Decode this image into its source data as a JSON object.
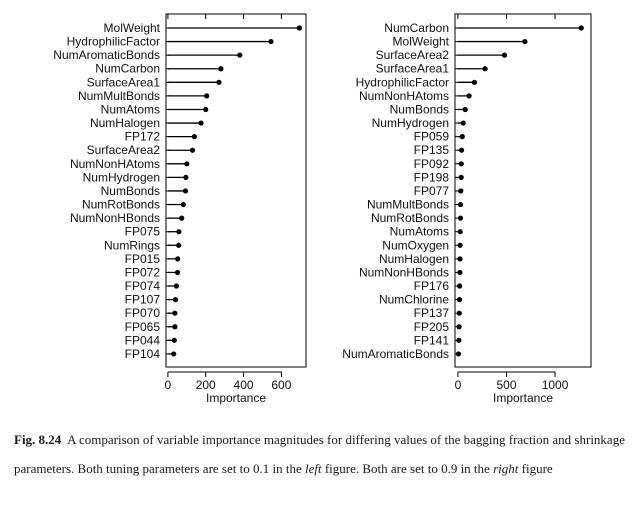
{
  "chart_data": [
    {
      "type": "scatter",
      "panel": "left",
      "xlabel": "Importance",
      "xlim": [
        -10,
        730
      ],
      "xticks": [
        0,
        200,
        400,
        600
      ],
      "categories": [
        "MolWeight",
        "HydrophilicFactor",
        "NumAromaticBonds",
        "NumCarbon",
        "SurfaceArea1",
        "NumMultBonds",
        "NumAtoms",
        "NumHalogen",
        "FP172",
        "SurfaceArea2",
        "NumNonHAtoms",
        "NumHydrogen",
        "NumBonds",
        "NumRotBonds",
        "NumNonHBonds",
        "FP075",
        "NumRings",
        "FP015",
        "FP072",
        "FP074",
        "FP107",
        "FP070",
        "FP065",
        "FP044",
        "FP104"
      ],
      "values": [
        695,
        545,
        380,
        280,
        270,
        205,
        200,
        175,
        140,
        130,
        100,
        95,
        93,
        82,
        73,
        58,
        57,
        52,
        51,
        45,
        40,
        37,
        37,
        34,
        31
      ]
    },
    {
      "type": "scatter",
      "panel": "right",
      "xlabel": "Importance",
      "xlim": [
        -30,
        1370
      ],
      "xticks": [
        0,
        500,
        1000
      ],
      "categories": [
        "NumCarbon",
        "MolWeight",
        "SurfaceArea2",
        "SurfaceArea1",
        "HydrophilicFactor",
        "NumNonHAtoms",
        "NumBonds",
        "NumHydrogen",
        "FP059",
        "FP135",
        "FP092",
        "FP198",
        "FP077",
        "NumMultBonds",
        "NumRotBonds",
        "NumAtoms",
        "NumOxygen",
        "NumHalogen",
        "NumNonHBonds",
        "FP176",
        "NumChlorine",
        "FP137",
        "FP205",
        "FP141",
        "NumAromaticBonds"
      ],
      "values": [
        1270,
        690,
        480,
        280,
        170,
        115,
        75,
        55,
        45,
        38,
        35,
        34,
        30,
        27,
        26,
        24,
        23,
        22,
        20,
        18,
        16,
        14,
        12,
        10,
        5
      ]
    }
  ],
  "caption": {
    "label": "Fig. 8.24",
    "part1": "A comparison of variable importance magnitudes for differing values of the bagging fraction and shrinkage parameters. Both tuning parameters are set to 0.1 in the ",
    "left_word": "left",
    "part2": " figure. Both are set to 0.9 in the ",
    "right_word": "right",
    "part3": " figure"
  }
}
